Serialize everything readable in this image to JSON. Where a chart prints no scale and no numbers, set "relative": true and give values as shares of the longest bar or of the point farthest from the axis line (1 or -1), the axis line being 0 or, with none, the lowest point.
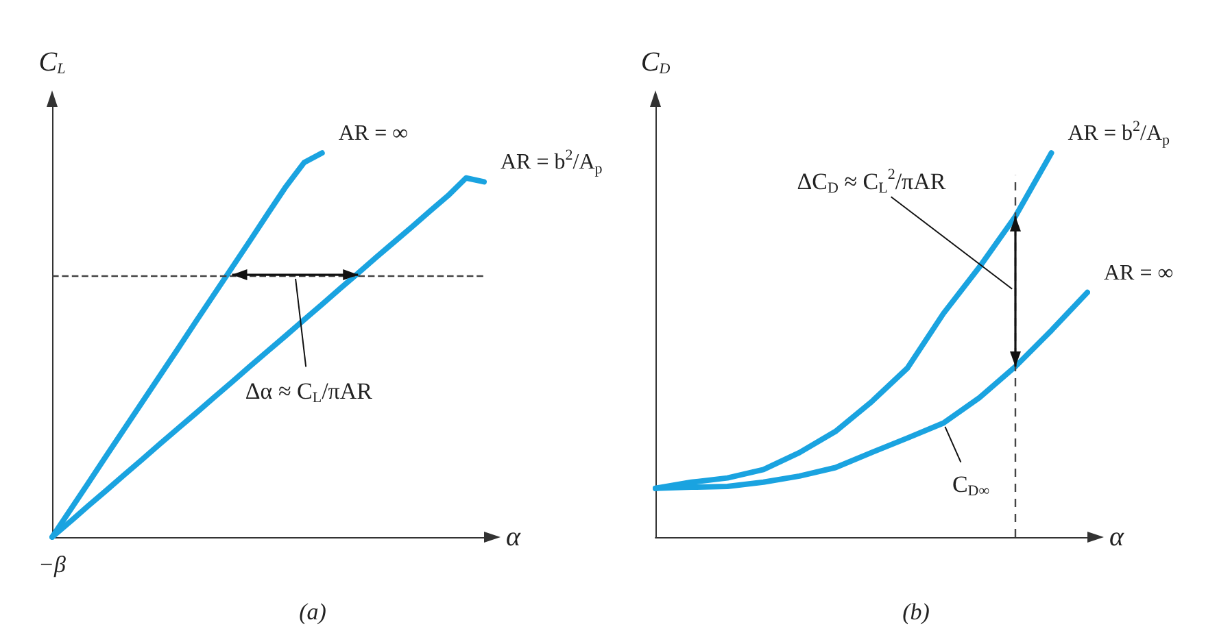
{
  "chart_data": [
    {
      "type": "line",
      "title": "(a)",
      "xlabel": "α",
      "ylabel": "C$_{L}$",
      "relative": true,
      "categories": [
        null,
        null,
        null,
        null,
        null,
        null,
        null,
        null,
        null,
        null,
        null,
        null,
        null,
        null,
        null,
        null,
        null,
        null,
        null,
        null,
        null,
        null,
        null,
        null,
        null
      ],
      "marker": "none",
      "legend": false,
      "grid": false,
      "series": [
        {
          "name": "AR = ∞",
          "color": "#1aa3e0",
          "values": [
            0,
            0.07,
            0.14,
            0.211,
            0.281,
            0.351,
            0.421,
            0.491,
            0.562,
            0.632,
            0.702,
            0.772,
            0.843,
            0.913,
            0.975,
            1,
            null,
            null,
            null,
            null,
            null,
            null,
            null,
            null,
            null
          ]
        },
        {
          "name": "AR = b$^{2}$/A$_{p}$",
          "color": "#1aa3e0",
          "values": [
            0,
            0.04,
            0.081,
            0.121,
            0.162,
            0.202,
            0.243,
            0.283,
            0.323,
            0.364,
            0.404,
            0.445,
            0.485,
            0.525,
            0.566,
            0.606,
            0.647,
            0.687,
            0.728,
            0.768,
            0.808,
            0.849,
            0.889,
            0.935,
            0.925
          ]
        }
      ],
      "ref_lines": [
        {
          "axis": "y",
          "value": 0.683,
          "color": "#444444",
          "line_style": "dashed"
        }
      ],
      "annotations": [
        "Δα ≈ C$_{L}$/πAR",
        "−β"
      ]
    },
    {
      "type": "line",
      "title": "(b)",
      "xlabel": "α",
      "ylabel": "C$_{D}$",
      "relative": true,
      "categories": [
        null,
        null,
        null,
        null,
        null,
        null,
        null,
        null,
        null,
        null,
        null,
        null,
        null
      ],
      "marker": "none",
      "legend": false,
      "grid": false,
      "series": [
        {
          "name": "AR = b$^{2}$/A$_{p}$",
          "color": "#1aa3e0",
          "values": [
            0.127,
            0.143,
            0.154,
            0.176,
            0.22,
            0.275,
            0.352,
            0.44,
            0.582,
            0.703,
            0.835,
            1,
            null
          ]
        },
        {
          "name": "AR = ∞",
          "color": "#1aa3e0",
          "values": [
            0.127,
            0.13,
            0.132,
            0.143,
            0.159,
            0.181,
            0.22,
            0.258,
            0.297,
            0.363,
            0.444,
            0.538,
            0.637
          ]
        }
      ],
      "annotations": [
        "ΔC$_{D}$ ≈ C$_{L}$$^{2}$/πAR",
        "C$_{D∞}$"
      ]
    }
  ]
}
